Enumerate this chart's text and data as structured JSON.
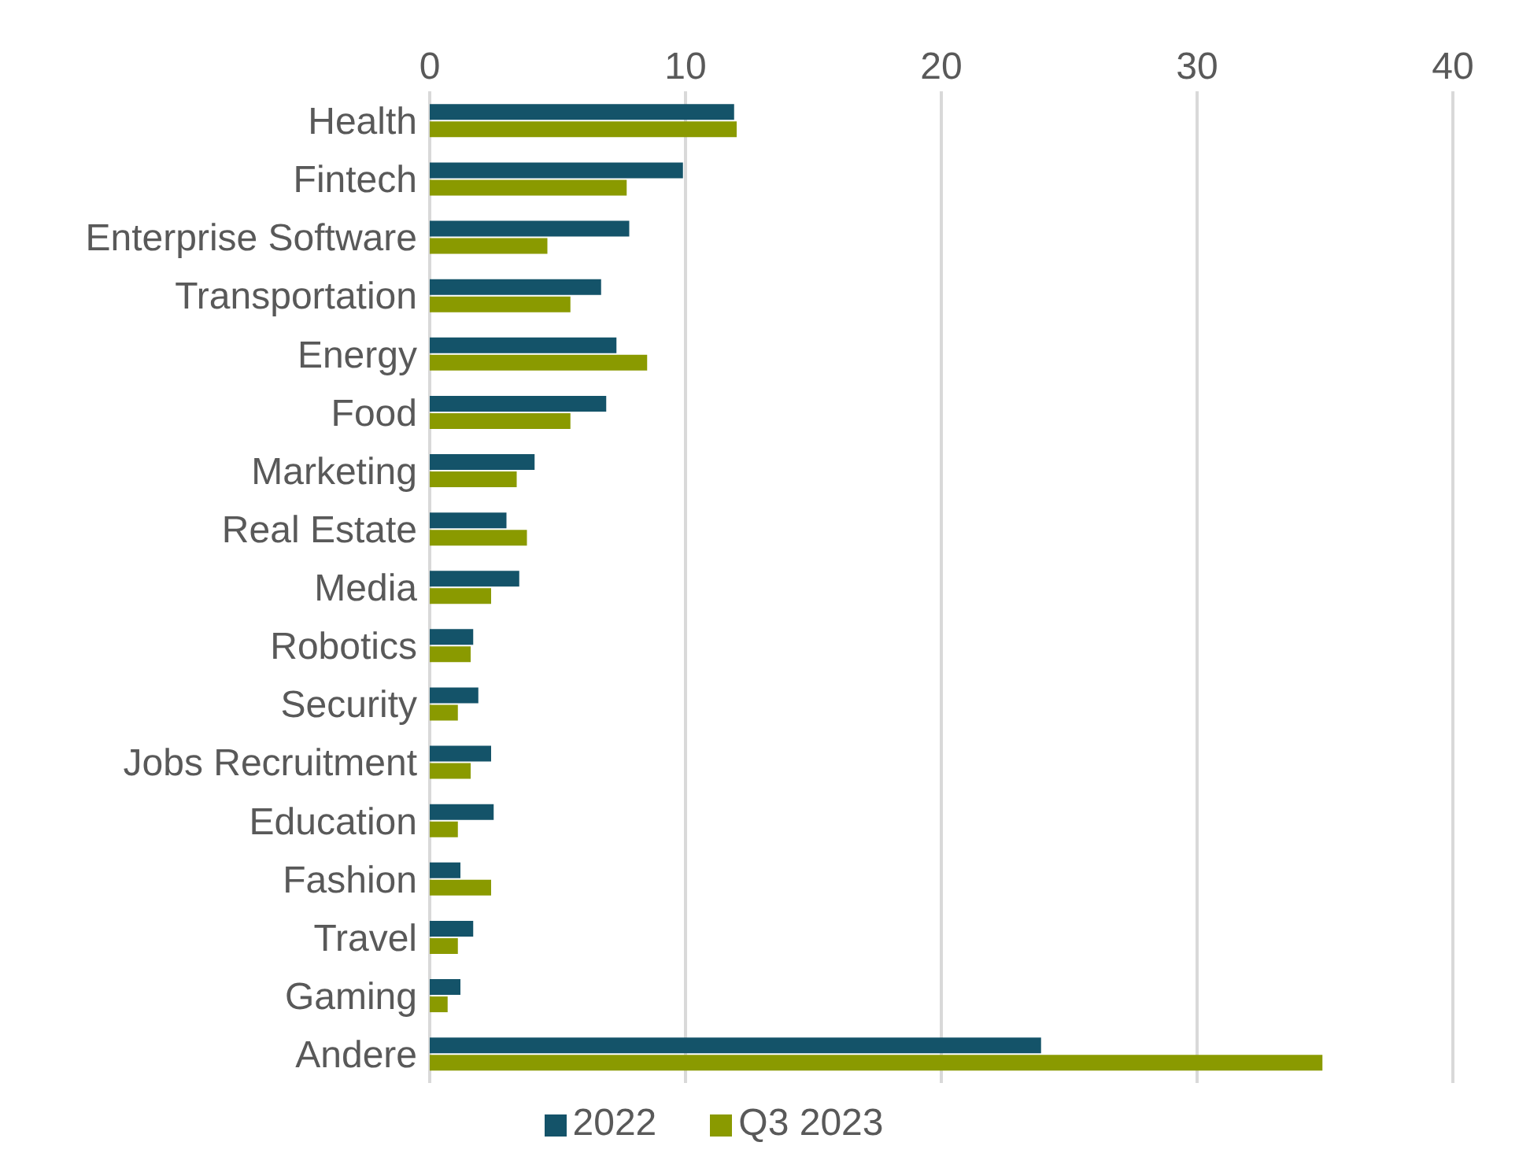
{
  "chart_data": {
    "type": "bar",
    "orientation": "horizontal",
    "categories": [
      "Health",
      "Fintech",
      "Enterprise Software",
      "Transportation",
      "Energy",
      "Food",
      "Marketing",
      "Real Estate",
      "Media",
      "Robotics",
      "Security",
      "Jobs Recruitment",
      "Education",
      "Fashion",
      "Travel",
      "Gaming",
      "Andere"
    ],
    "series": [
      {
        "name": "2022",
        "color": "#145369",
        "values": [
          11.9,
          9.9,
          7.8,
          6.7,
          7.3,
          6.9,
          4.1,
          3.0,
          3.5,
          1.7,
          1.9,
          2.4,
          2.5,
          1.2,
          1.7,
          1.2,
          23.9
        ]
      },
      {
        "name": "Q3 2023",
        "color": "#8a9a00",
        "values": [
          12.0,
          7.7,
          4.6,
          5.5,
          8.5,
          5.5,
          3.4,
          3.8,
          2.4,
          1.6,
          1.1,
          1.6,
          1.1,
          2.4,
          1.1,
          0.7,
          34.9
        ]
      }
    ],
    "xlim": [
      0,
      40
    ],
    "xticks": [
      0,
      10,
      20,
      30,
      40
    ],
    "grid": "x",
    "legend": "bottom"
  }
}
